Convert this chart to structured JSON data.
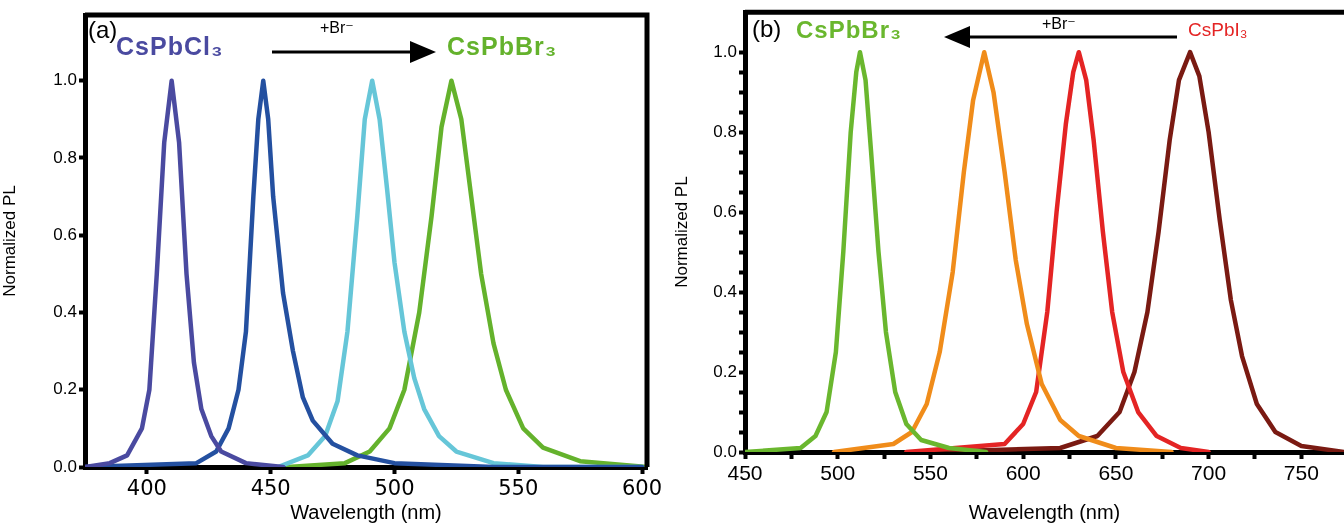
{
  "chart_data": [
    {
      "type": "line",
      "xlabel": "Wavelength (nm)",
      "ylabel": "Normalized PL",
      "grid": false,
      "legend": false,
      "marker": "none",
      "line_style": "solid",
      "annotations": [
        "(a)",
        "CsPbCl₃",
        "+Br⁻",
        "CsPbBr₃"
      ],
      "xlim": [
        375,
        602
      ],
      "ylim": [
        0,
        1.17
      ],
      "xticks": [
        400,
        450,
        500,
        550,
        600
      ],
      "yticks": [
        {
          "value": 0,
          "label": "0.0"
        },
        {
          "value": 0.2,
          "label": "0.2"
        },
        {
          "value": 0.4,
          "label": "0.4"
        },
        {
          "value": 0.6,
          "label": "0.6"
        },
        {
          "value": 0.8,
          "label": "0.8"
        },
        {
          "value": 1,
          "label": "1.0"
        }
      ],
      "series": [
        {
          "color": "#4a4aa0",
          "x": [
            375,
            385,
            392,
            398,
            401,
            404,
            407,
            410,
            413,
            416,
            419,
            422,
            426,
            430,
            440,
            455
          ],
          "values": [
            0,
            0.01,
            0.03,
            0.1,
            0.2,
            0.5,
            0.84,
            1,
            0.84,
            0.5,
            0.27,
            0.15,
            0.08,
            0.04,
            0.01,
            0
          ]
        },
        {
          "color": "#2450a0",
          "x": [
            375,
            420,
            428,
            433,
            437,
            440,
            443,
            445,
            447,
            449,
            451,
            455,
            459,
            463,
            467,
            475,
            485,
            500,
            540,
            600
          ],
          "values": [
            0,
            0.01,
            0.04,
            0.1,
            0.2,
            0.35,
            0.7,
            0.9,
            1,
            0.9,
            0.7,
            0.45,
            0.3,
            0.18,
            0.12,
            0.06,
            0.03,
            0.01,
            0,
            0
          ]
        },
        {
          "color": "#66c6d8",
          "x": [
            453,
            465,
            472,
            477,
            481,
            485,
            488,
            491,
            494,
            497,
            500,
            504,
            508,
            512,
            518,
            525,
            540,
            560,
            600
          ],
          "values": [
            0,
            0.03,
            0.08,
            0.17,
            0.35,
            0.65,
            0.9,
            1,
            0.9,
            0.72,
            0.53,
            0.35,
            0.23,
            0.15,
            0.08,
            0.04,
            0.01,
            0,
            0
          ]
        },
        {
          "color": "#64b22c",
          "x": [
            457,
            480,
            490,
            498,
            504,
            510,
            515,
            519,
            523,
            527,
            531,
            535,
            540,
            545,
            552,
            560,
            575,
            602
          ],
          "values": [
            0,
            0.01,
            0.04,
            0.1,
            0.2,
            0.4,
            0.65,
            0.88,
            1,
            0.9,
            0.7,
            0.5,
            0.32,
            0.2,
            0.1,
            0.05,
            0.015,
            0
          ]
        }
      ]
    },
    {
      "type": "line",
      "xlabel": "Wavelength (nm)",
      "ylabel": "Normalized PL",
      "grid": false,
      "legend": false,
      "marker": "none",
      "line_style": "solid",
      "annotations": [
        "(b)",
        "CsPbBr₃",
        "+Br⁻",
        "CsPbI₃"
      ],
      "xlim": [
        450,
        773
      ],
      "ylim": [
        0,
        1.1
      ],
      "xticks": [
        450,
        {
          "value": 475,
          "label": null
        },
        500,
        {
          "value": 525,
          "label": null
        },
        550,
        {
          "value": 575,
          "label": null
        },
        600,
        {
          "value": 625,
          "label": null
        },
        650,
        {
          "value": 675,
          "label": null
        },
        700,
        {
          "value": 725,
          "label": null
        },
        750
      ],
      "yticks": [
        {
          "value": 0,
          "label": "0.0"
        },
        {
          "value": 0.05,
          "label": null
        },
        {
          "value": 0.1,
          "label": null
        },
        {
          "value": 0.15,
          "label": null
        },
        {
          "value": 0.2,
          "label": "0.2"
        },
        {
          "value": 0.25,
          "label": null
        },
        {
          "value": 0.3,
          "label": null
        },
        {
          "value": 0.35,
          "label": null
        },
        {
          "value": 0.4,
          "label": "0.4"
        },
        {
          "value": 0.45,
          "label": null
        },
        {
          "value": 0.5,
          "label": null
        },
        {
          "value": 0.55,
          "label": null
        },
        {
          "value": 0.6,
          "label": "0.6"
        },
        {
          "value": 0.65,
          "label": null
        },
        {
          "value": 0.7,
          "label": null
        },
        {
          "value": 0.75,
          "label": null
        },
        {
          "value": 0.8,
          "label": "0.8"
        },
        {
          "value": 0.85,
          "label": null
        },
        {
          "value": 0.9,
          "label": null
        },
        {
          "value": 0.95,
          "label": null
        },
        {
          "value": 1,
          "label": "1.0"
        }
      ],
      "series": [
        {
          "color": "#6ab72e",
          "x": [
            450,
            480,
            488,
            494,
            499,
            503,
            507,
            510,
            512,
            515,
            518,
            522,
            526,
            531,
            537,
            545,
            560,
            580
          ],
          "values": [
            0,
            0.01,
            0.04,
            0.1,
            0.25,
            0.5,
            0.8,
            0.95,
            1,
            0.93,
            0.75,
            0.5,
            0.3,
            0.15,
            0.07,
            0.03,
            0.01,
            0
          ]
        },
        {
          "color": "#f08c1a",
          "x": [
            498,
            530,
            540,
            548,
            555,
            562,
            568,
            573,
            579,
            584,
            590,
            596,
            602,
            610,
            620,
            630,
            650,
            680
          ],
          "values": [
            0,
            0.02,
            0.05,
            0.12,
            0.25,
            0.45,
            0.7,
            0.88,
            1,
            0.9,
            0.7,
            0.48,
            0.32,
            0.17,
            0.08,
            0.04,
            0.01,
            0
          ]
        },
        {
          "color": "#e42424",
          "x": [
            537,
            590,
            600,
            607,
            613,
            618,
            623,
            627,
            630,
            634,
            638,
            643,
            648,
            654,
            662,
            672,
            685,
            700
          ],
          "values": [
            0,
            0.02,
            0.07,
            0.15,
            0.35,
            0.6,
            0.82,
            0.95,
            1,
            0.93,
            0.78,
            0.55,
            0.35,
            0.2,
            0.1,
            0.04,
            0.01,
            0
          ]
        },
        {
          "color": "#7a1a12",
          "x": [
            548,
            620,
            640,
            652,
            660,
            667,
            673,
            679,
            684,
            690,
            695,
            700,
            706,
            712,
            718,
            726,
            736,
            750,
            773
          ],
          "values": [
            0,
            0.01,
            0.04,
            0.1,
            0.2,
            0.35,
            0.55,
            0.78,
            0.93,
            1,
            0.94,
            0.8,
            0.58,
            0.38,
            0.24,
            0.12,
            0.05,
            0.015,
            0
          ]
        }
      ]
    }
  ]
}
